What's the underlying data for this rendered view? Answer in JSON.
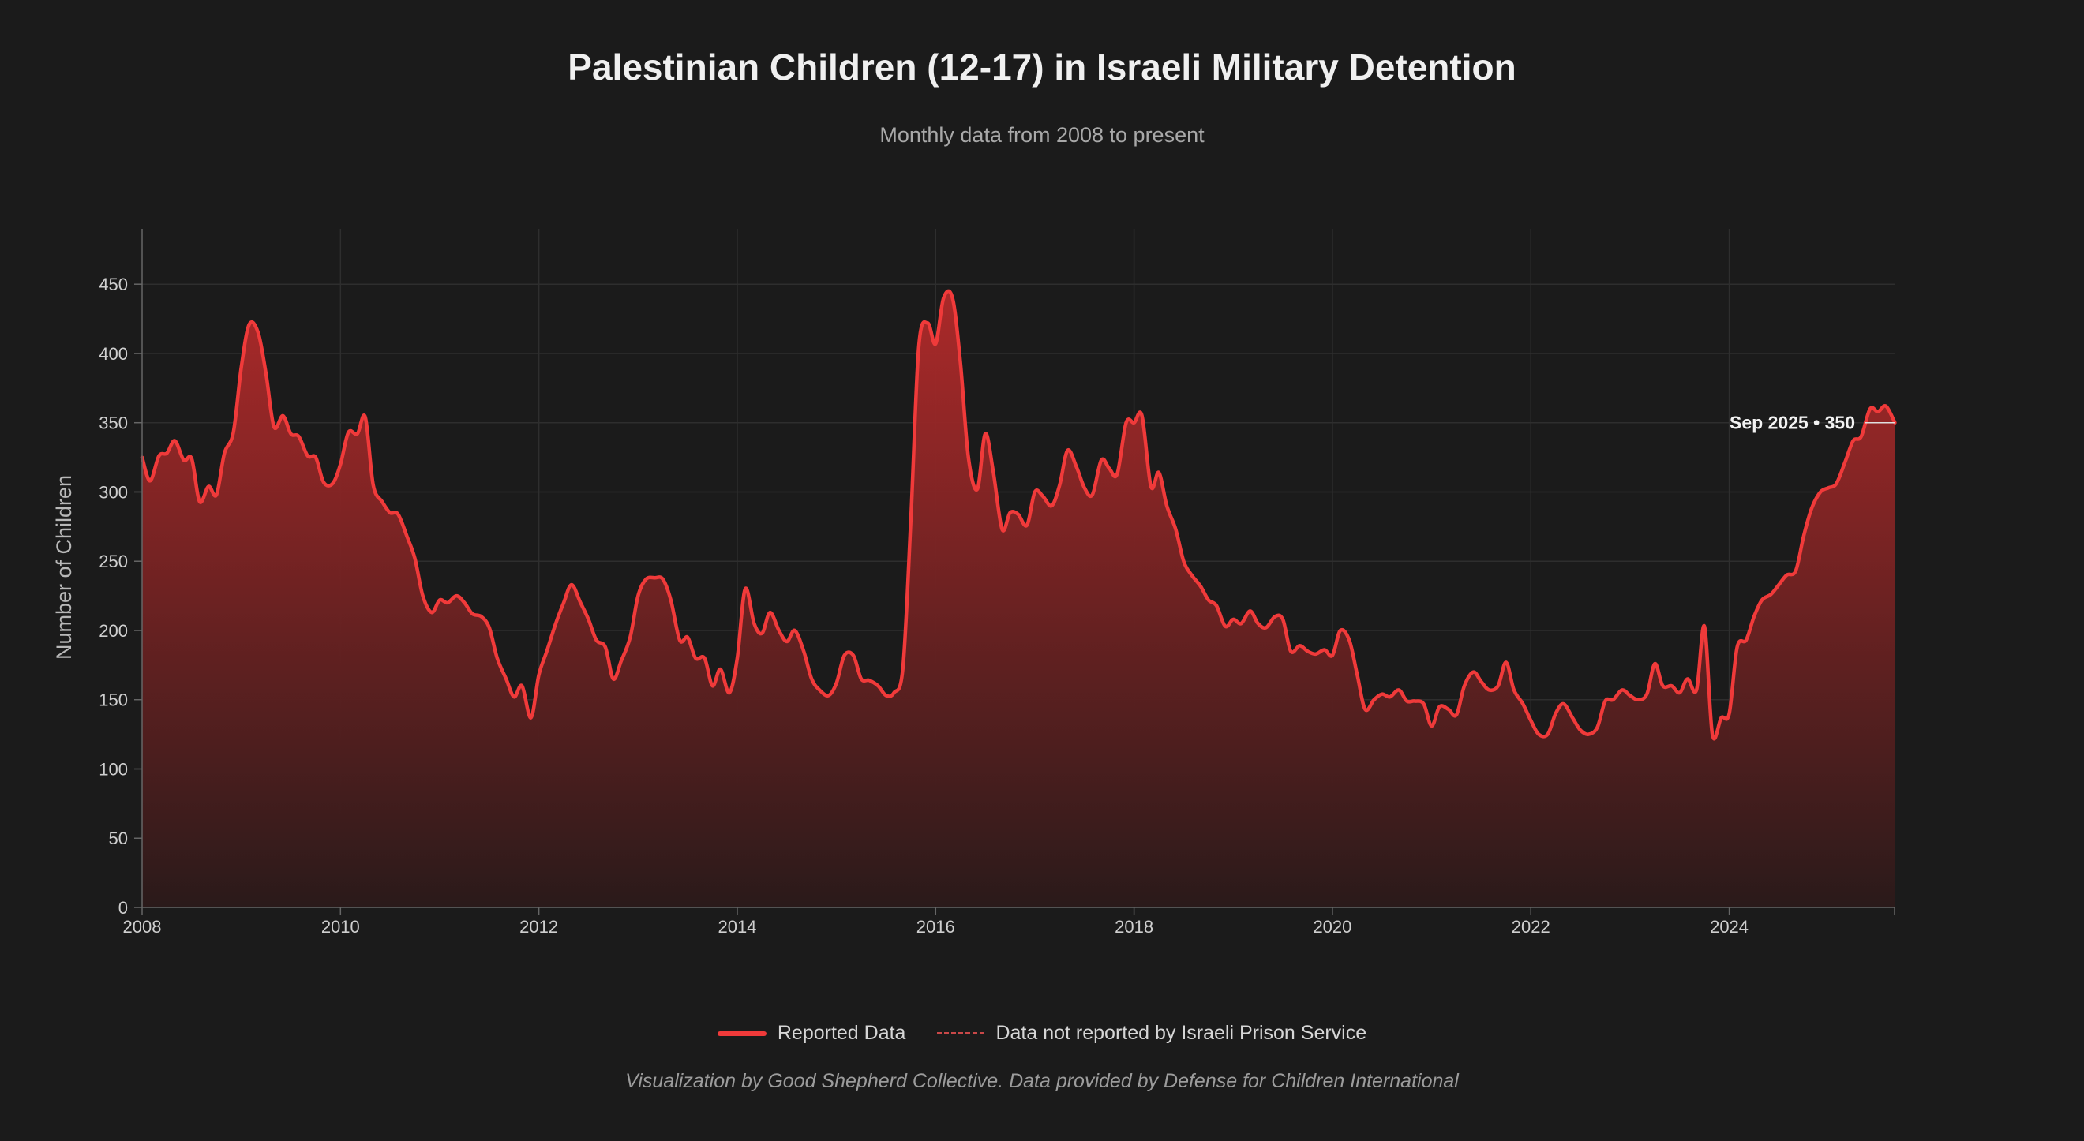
{
  "header": {
    "title": "Palestinian Children (12-17) in Israeli Military Detention",
    "subtitle": "Monthly data from 2008 to present"
  },
  "legend": {
    "reported_label": "Reported Data",
    "not_reported_label": "Data not reported by Israeli Prison Service"
  },
  "footer": {
    "credit": "Visualization by Good Shepherd Collective. Data provided by Defense for Children International"
  },
  "colors": {
    "line": "#f03a3a",
    "fill_top": "#b32a2a",
    "fill_bottom": "#2a1a1a",
    "background": "#1b1b1b",
    "grid": "#2e2e2e"
  },
  "chart_data": {
    "type": "area",
    "ylabel": "Number of Children",
    "xlabel": "",
    "ylim": [
      0,
      490
    ],
    "xlim": [
      2008.0,
      2025.6667
    ],
    "y_ticks": [
      0,
      50,
      100,
      150,
      200,
      250,
      300,
      350,
      400,
      450
    ],
    "x_ticks": [
      2008,
      2010,
      2012,
      2014,
      2016,
      2018,
      2020,
      2022,
      2024
    ],
    "grid": true,
    "legend_position": "bottom-center",
    "annotation": {
      "label": "Sep 2025 • 350",
      "x": 2025.6667,
      "y": 350
    },
    "series": [
      {
        "name": "Reported Data",
        "points": [
          [
            2008.0,
            325
          ],
          [
            2008.08,
            308
          ],
          [
            2008.17,
            326
          ],
          [
            2008.25,
            328
          ],
          [
            2008.33,
            337
          ],
          [
            2008.42,
            323
          ],
          [
            2008.5,
            324
          ],
          [
            2008.58,
            293
          ],
          [
            2008.67,
            304
          ],
          [
            2008.75,
            298
          ],
          [
            2008.83,
            328
          ],
          [
            2008.92,
            343
          ],
          [
            2009.0,
            390
          ],
          [
            2009.08,
            421
          ],
          [
            2009.17,
            415
          ],
          [
            2009.25,
            385
          ],
          [
            2009.33,
            347
          ],
          [
            2009.42,
            355
          ],
          [
            2009.5,
            342
          ],
          [
            2009.58,
            340
          ],
          [
            2009.67,
            326
          ],
          [
            2009.75,
            325
          ],
          [
            2009.83,
            307
          ],
          [
            2009.92,
            306
          ],
          [
            2010.0,
            320
          ],
          [
            2010.08,
            343
          ],
          [
            2010.17,
            342
          ],
          [
            2010.25,
            354
          ],
          [
            2010.33,
            305
          ],
          [
            2010.42,
            293
          ],
          [
            2010.5,
            285
          ],
          [
            2010.58,
            284
          ],
          [
            2010.67,
            268
          ],
          [
            2010.75,
            252
          ],
          [
            2010.83,
            225
          ],
          [
            2010.92,
            213
          ],
          [
            2011.0,
            222
          ],
          [
            2011.08,
            220
          ],
          [
            2011.17,
            225
          ],
          [
            2011.25,
            220
          ],
          [
            2011.33,
            212
          ],
          [
            2011.42,
            210
          ],
          [
            2011.5,
            202
          ],
          [
            2011.58,
            180
          ],
          [
            2011.67,
            165
          ],
          [
            2011.75,
            152
          ],
          [
            2011.83,
            160
          ],
          [
            2011.92,
            137
          ],
          [
            2012.0,
            168
          ],
          [
            2012.08,
            185
          ],
          [
            2012.17,
            205
          ],
          [
            2012.25,
            220
          ],
          [
            2012.33,
            233
          ],
          [
            2012.42,
            220
          ],
          [
            2012.5,
            208
          ],
          [
            2012.58,
            193
          ],
          [
            2012.67,
            188
          ],
          [
            2012.75,
            165
          ],
          [
            2012.83,
            178
          ],
          [
            2012.92,
            195
          ],
          [
            2013.0,
            225
          ],
          [
            2013.08,
            237
          ],
          [
            2013.17,
            238
          ],
          [
            2013.25,
            237
          ],
          [
            2013.33,
            222
          ],
          [
            2013.42,
            193
          ],
          [
            2013.5,
            195
          ],
          [
            2013.58,
            180
          ],
          [
            2013.67,
            180
          ],
          [
            2013.75,
            160
          ],
          [
            2013.83,
            172
          ],
          [
            2013.92,
            155
          ],
          [
            2014.0,
            180
          ],
          [
            2014.08,
            230
          ],
          [
            2014.17,
            205
          ],
          [
            2014.25,
            198
          ],
          [
            2014.33,
            213
          ],
          [
            2014.42,
            200
          ],
          [
            2014.5,
            192
          ],
          [
            2014.58,
            200
          ],
          [
            2014.67,
            185
          ],
          [
            2014.75,
            165
          ],
          [
            2014.83,
            157
          ],
          [
            2014.92,
            153
          ],
          [
            2015.0,
            162
          ],
          [
            2015.08,
            182
          ],
          [
            2015.17,
            182
          ],
          [
            2015.25,
            165
          ],
          [
            2015.33,
            164
          ],
          [
            2015.42,
            160
          ],
          [
            2015.5,
            153
          ],
          [
            2015.58,
            155
          ],
          [
            2015.67,
            173
          ],
          [
            2015.75,
            280
          ],
          [
            2015.83,
            405
          ],
          [
            2015.92,
            422
          ],
          [
            2016.0,
            407
          ],
          [
            2016.08,
            440
          ],
          [
            2016.17,
            440
          ],
          [
            2016.25,
            393
          ],
          [
            2016.33,
            325
          ],
          [
            2016.42,
            302
          ],
          [
            2016.5,
            342
          ],
          [
            2016.58,
            315
          ],
          [
            2016.67,
            273
          ],
          [
            2016.75,
            285
          ],
          [
            2016.83,
            284
          ],
          [
            2016.92,
            276
          ],
          [
            2017.0,
            300
          ],
          [
            2017.08,
            297
          ],
          [
            2017.17,
            290
          ],
          [
            2017.25,
            305
          ],
          [
            2017.33,
            330
          ],
          [
            2017.42,
            318
          ],
          [
            2017.5,
            303
          ],
          [
            2017.58,
            298
          ],
          [
            2017.67,
            323
          ],
          [
            2017.75,
            317
          ],
          [
            2017.83,
            313
          ],
          [
            2017.92,
            350
          ],
          [
            2018.0,
            350
          ],
          [
            2018.08,
            355
          ],
          [
            2018.17,
            304
          ],
          [
            2018.25,
            314
          ],
          [
            2018.33,
            290
          ],
          [
            2018.42,
            273
          ],
          [
            2018.5,
            250
          ],
          [
            2018.58,
            240
          ],
          [
            2018.67,
            232
          ],
          [
            2018.75,
            222
          ],
          [
            2018.83,
            218
          ],
          [
            2018.92,
            203
          ],
          [
            2019.0,
            208
          ],
          [
            2019.08,
            205
          ],
          [
            2019.17,
            214
          ],
          [
            2019.25,
            205
          ],
          [
            2019.33,
            202
          ],
          [
            2019.42,
            210
          ],
          [
            2019.5,
            208
          ],
          [
            2019.58,
            185
          ],
          [
            2019.67,
            189
          ],
          [
            2019.75,
            185
          ],
          [
            2019.83,
            183
          ],
          [
            2019.92,
            186
          ],
          [
            2020.0,
            182
          ],
          [
            2020.08,
            200
          ],
          [
            2020.17,
            193
          ],
          [
            2020.25,
            168
          ],
          [
            2020.33,
            143
          ],
          [
            2020.42,
            150
          ],
          [
            2020.5,
            154
          ],
          [
            2020.58,
            152
          ],
          [
            2020.67,
            157
          ],
          [
            2020.75,
            149
          ],
          [
            2020.83,
            149
          ],
          [
            2020.92,
            147
          ],
          [
            2021.0,
            131
          ],
          [
            2021.08,
            145
          ],
          [
            2021.17,
            143
          ],
          [
            2021.25,
            139
          ],
          [
            2021.33,
            160
          ],
          [
            2021.42,
            170
          ],
          [
            2021.5,
            163
          ],
          [
            2021.58,
            157
          ],
          [
            2021.67,
            160
          ],
          [
            2021.75,
            177
          ],
          [
            2021.83,
            157
          ],
          [
            2021.92,
            147
          ],
          [
            2022.0,
            135
          ],
          [
            2022.08,
            125
          ],
          [
            2022.17,
            125
          ],
          [
            2022.25,
            140
          ],
          [
            2022.33,
            147
          ],
          [
            2022.42,
            137
          ],
          [
            2022.5,
            128
          ],
          [
            2022.58,
            125
          ],
          [
            2022.67,
            130
          ],
          [
            2022.75,
            149
          ],
          [
            2022.83,
            150
          ],
          [
            2022.92,
            157
          ],
          [
            2023.0,
            153
          ],
          [
            2023.08,
            150
          ],
          [
            2023.17,
            154
          ],
          [
            2023.25,
            176
          ],
          [
            2023.33,
            160
          ],
          [
            2023.42,
            160
          ],
          [
            2023.5,
            155
          ],
          [
            2023.58,
            165
          ],
          [
            2023.67,
            157
          ],
          [
            2023.75,
            203
          ],
          [
            2023.83,
            125
          ],
          [
            2023.92,
            137
          ],
          [
            2024.0,
            140
          ],
          [
            2024.08,
            188
          ],
          [
            2024.17,
            193
          ],
          [
            2024.25,
            210
          ],
          [
            2024.33,
            222
          ],
          [
            2024.42,
            226
          ],
          [
            2024.5,
            233
          ],
          [
            2024.58,
            240
          ],
          [
            2024.67,
            243
          ],
          [
            2024.75,
            268
          ],
          [
            2024.83,
            288
          ],
          [
            2024.92,
            300
          ],
          [
            2025.0,
            303
          ],
          [
            2025.08,
            306
          ],
          [
            2025.17,
            322
          ],
          [
            2025.25,
            337
          ],
          [
            2025.33,
            340
          ],
          [
            2025.42,
            360
          ],
          [
            2025.5,
            358
          ],
          [
            2025.58,
            362
          ],
          [
            2025.67,
            350
          ]
        ]
      }
    ]
  }
}
